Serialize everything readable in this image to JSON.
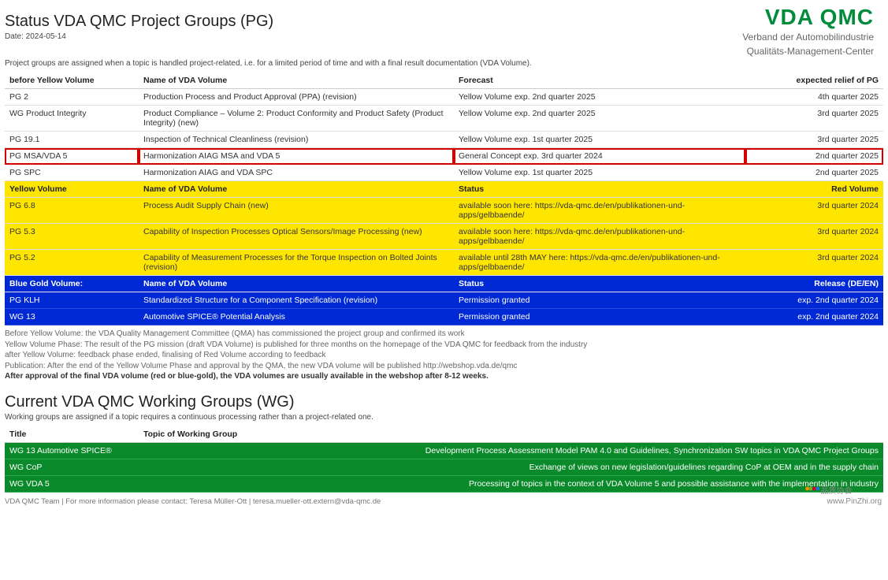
{
  "logo": {
    "main": "VDA   QMC",
    "sub1": "Verband der Automobilindustrie",
    "sub2": "Qualitäts-Management-Center"
  },
  "pg": {
    "title": "Status VDA QMC Project Groups (PG)",
    "date": "Date: 2024-05-14",
    "intro": "Project groups are assigned when a topic is handled project-related, i.e. for a limited period of time and with a final result documentation (VDA Volume).",
    "white": {
      "columns": [
        "before Yellow Volume",
        "Name of VDA Volume",
        "Forecast",
        "expected relief of PG"
      ],
      "rows": [
        {
          "pg": "PG 2",
          "name": "Production Process and Product Approval (PPA) (revision)",
          "forecast": "Yellow Volume exp. 2nd quarter 2025",
          "relief": "4th quarter 2025",
          "hl": false
        },
        {
          "pg": "WG Product Integrity",
          "name": "Product Compliance – Volume 2: Product Conformity and Product Safety (Product Integrity) (new)",
          "forecast": "Yellow Volume exp. 2nd quarter 2025",
          "relief": "3rd quarter 2025",
          "hl": false
        },
        {
          "pg": "PG 19.1",
          "name": "Inspection of Technical Cleanliness (revision)",
          "forecast": "Yellow Volume exp. 1st quarter 2025",
          "relief": "3rd quarter 2025",
          "hl": false
        },
        {
          "pg": "PG MSA/VDA 5",
          "name": "Harmonization AIAG MSA and VDA 5",
          "forecast": "General Concept exp. 3rd quarter 2024",
          "relief": "2nd quarter 2025",
          "hl": true
        },
        {
          "pg": "PG SPC",
          "name": "Harmonization AIAG and VDA SPC",
          "forecast": "Yellow Volume exp. 1st quarter 2025",
          "relief": "2nd quarter 2025",
          "hl": false
        }
      ]
    },
    "yellow": {
      "columns": [
        "Yellow Volume",
        "Name of VDA Volume",
        "Status",
        "Red Volume"
      ],
      "rows": [
        {
          "pg": "PG 6.8",
          "name": "Process Audit Supply Chain (new)",
          "status": "available soon here: https://vda-qmc.de/en/publikationen-und-apps/gelbbaende/",
          "rv": "3rd quarter 2024"
        },
        {
          "pg": "PG 5.3",
          "name": "Capability of Inspection Processes Optical Sensors/Image Processing (new)",
          "status": "available soon here: https://vda-qmc.de/en/publikationen-und-apps/gelbbaende/",
          "rv": "3rd quarter 2024"
        },
        {
          "pg": "PG 5.2",
          "name": "Capability of Measurement Processes for the Torque Inspection on Bolted Joints (revision)",
          "status": "available until 28th MAY here: https://vda-qmc.de/en/publikationen-und-apps/gelbbaende/",
          "rv": "3rd quarter 2024"
        }
      ]
    },
    "blue": {
      "columns": [
        "Blue Gold Volume:",
        "Name of VDA Volume",
        "Status",
        "Release (DE/EN)"
      ],
      "rows": [
        {
          "pg": "PG KLH",
          "name": "Standardized Structure for a Component Specification (revision)",
          "status": "Permission granted",
          "rel": "exp. 2nd quarter 2024"
        },
        {
          "pg": "WG 13",
          "name": "Automotive SPICE® Potential Analysis",
          "status": "Permission granted",
          "rel": "exp. 2nd quarter 2024"
        }
      ]
    },
    "notes": [
      "Before Yellow Volume: the VDA Quality Management Committee (QMA) has commissioned the project group and confirmed its work",
      "Yellow Volume Phase: The result of the PG mission (draft VDA Volume) is published for three months on the homepage of the VDA QMC for feedback from the industry",
      "after Yellow Volume: feedback phase ended, finalising of Red Volume according to feedback",
      "Publication: After the end of the Yellow Volume Phase and approval by the QMA, the new VDA volume will be published http://webshop.vda.de/qmc"
    ],
    "notes_bold": "After approval of the final VDA volume (red or blue-gold), the VDA volumes are usually available in the webshop after 8-12 weeks."
  },
  "wg": {
    "title": "Current VDA QMC Working Groups (WG)",
    "intro": "Working groups are assigned if a topic requires a continuous processing rather than a project-related one.",
    "columns": [
      "Title",
      "Topic of Working Group"
    ],
    "rows": [
      {
        "title": "WG 13 Automotive SPICE®",
        "topic": "Development Process Assessment Model PAM 4.0 and Guidelines, Synchronization SW topics in VDA QMC Project Groups"
      },
      {
        "title": "WG CoP",
        "topic": "Exchange of views on new legislation/guidelines regarding CoP at OEM and in the supply chain"
      },
      {
        "title": "WG VDA 5",
        "topic": "Processing of topics in the context of VDA Volume 5 and possible assistance with the implementation in industry"
      }
    ]
  },
  "footer": "VDA QMC Team | For more information please contact: Teresa Müller-Ott | teresa.mueller-ott.extern@vda-qmc.de",
  "watermark": {
    "line1": "品质协会",
    "line2": "www.PinZhi.org"
  },
  "colors": {
    "brand_green": "#008c3a",
    "section_yellow": "#ffe600",
    "section_blue": "#0029d6",
    "section_green": "#0a8a2a",
    "highlight_border": "#d40000"
  }
}
